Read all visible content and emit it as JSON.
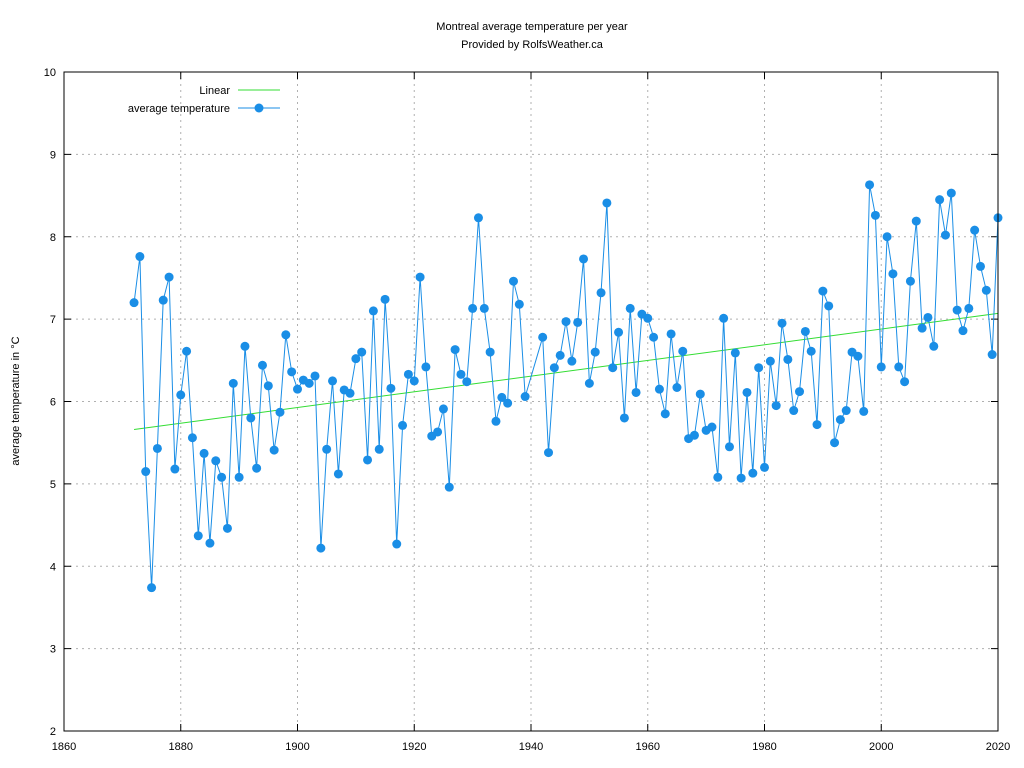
{
  "chart_data": {
    "type": "line",
    "title": "Montreal average temperature per year",
    "subtitle": "Provided by RolfsWeather.ca",
    "xlabel": "",
    "ylabel": "average temperature in °C",
    "xlim": [
      1860,
      2020
    ],
    "ylim": [
      2,
      10
    ],
    "x_ticks": [
      1860,
      1880,
      1900,
      1920,
      1940,
      1960,
      1980,
      2000,
      2020
    ],
    "y_ticks": [
      2,
      3,
      4,
      5,
      6,
      7,
      8,
      9,
      10
    ],
    "grid": true,
    "legend_position": "top-left",
    "series": [
      {
        "name": "Linear",
        "type": "line",
        "color": "#33dd33",
        "x": [
          1872,
          2020
        ],
        "y": [
          5.66,
          7.07
        ]
      },
      {
        "name": "average temperature",
        "type": "line+markers",
        "color": "#1a8ee6",
        "x": [
          1872,
          1873,
          1874,
          1875,
          1876,
          1877,
          1878,
          1879,
          1880,
          1881,
          1882,
          1883,
          1884,
          1885,
          1886,
          1887,
          1888,
          1889,
          1890,
          1891,
          1892,
          1893,
          1894,
          1895,
          1896,
          1897,
          1898,
          1899,
          1900,
          1901,
          1902,
          1903,
          1904,
          1905,
          1906,
          1907,
          1908,
          1909,
          1910,
          1911,
          1912,
          1913,
          1914,
          1915,
          1916,
          1917,
          1918,
          1919,
          1920,
          1921,
          1922,
          1923,
          1924,
          1925,
          1926,
          1927,
          1928,
          1929,
          1930,
          1931,
          1932,
          1933,
          1934,
          1935,
          1936,
          1937,
          1938,
          1939,
          1942,
          1943,
          1944,
          1945,
          1946,
          1947,
          1948,
          1949,
          1950,
          1951,
          1952,
          1953,
          1954,
          1955,
          1956,
          1957,
          1958,
          1959,
          1960,
          1961,
          1962,
          1963,
          1964,
          1965,
          1966,
          1967,
          1968,
          1969,
          1970,
          1971,
          1972,
          1973,
          1974,
          1975,
          1976,
          1977,
          1978,
          1979,
          1980,
          1981,
          1982,
          1983,
          1984,
          1985,
          1986,
          1987,
          1988,
          1989,
          1990,
          1991,
          1992,
          1993,
          1994,
          1995,
          1996,
          1997,
          1998,
          1999,
          2000,
          2001,
          2002,
          2003,
          2004,
          2005,
          2006,
          2007,
          2008,
          2009,
          2010,
          2011,
          2012,
          2013,
          2014,
          2015,
          2016,
          2017,
          2018,
          2019,
          2020
        ],
        "y": [
          7.2,
          7.76,
          5.15,
          3.74,
          5.43,
          7.23,
          7.51,
          5.18,
          6.08,
          6.61,
          5.56,
          4.37,
          5.37,
          4.28,
          5.28,
          5.08,
          4.46,
          6.22,
          5.08,
          6.67,
          5.8,
          5.19,
          6.44,
          6.19,
          5.41,
          5.87,
          6.81,
          6.36,
          6.15,
          6.26,
          6.22,
          6.31,
          4.22,
          5.42,
          6.25,
          5.12,
          6.14,
          6.1,
          6.52,
          6.6,
          5.29,
          7.1,
          5.42,
          7.24,
          6.16,
          4.27,
          5.71,
          6.33,
          6.25,
          7.51,
          6.42,
          5.58,
          5.63,
          5.91,
          4.96,
          6.63,
          6.33,
          6.24,
          7.13,
          8.23,
          7.13,
          6.6,
          5.76,
          6.05,
          5.98,
          7.46,
          7.18,
          6.06,
          6.78,
          5.38,
          6.41,
          6.56,
          6.97,
          6.49,
          6.96,
          7.73,
          6.22,
          6.6,
          7.32,
          8.41,
          6.41,
          6.84,
          5.8,
          7.13,
          6.11,
          7.06,
          7.01,
          6.78,
          6.15,
          5.85,
          6.82,
          6.17,
          6.61,
          5.55,
          5.59,
          6.09,
          5.65,
          5.69,
          5.08,
          7.01,
          5.45,
          6.59,
          5.07,
          6.11,
          5.13,
          6.41,
          5.2,
          6.49,
          5.95,
          6.95,
          6.51,
          5.89,
          6.12,
          6.85,
          6.61,
          5.72,
          7.34,
          7.16,
          5.5,
          5.78,
          5.89,
          6.6,
          6.55,
          5.88,
          8.63,
          8.26,
          6.42,
          8.0,
          7.55,
          6.42,
          6.24,
          7.46,
          8.19,
          6.89,
          7.02,
          6.67,
          8.45,
          8.02,
          8.53,
          7.11,
          6.86,
          7.13,
          8.08,
          7.64,
          7.35,
          6.57,
          8.23
        ]
      }
    ]
  }
}
